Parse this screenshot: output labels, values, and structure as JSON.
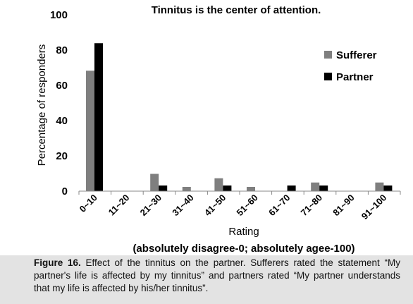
{
  "chart_data": {
    "type": "bar",
    "title": "Tinnitus is the center of attention.",
    "xlabel": "Rating",
    "xlabel_note": "(absolutely disagree-0; absolutely agee-100)",
    "ylabel": "Percentage of responders",
    "ylim": [
      0,
      100
    ],
    "yticks": [
      "0",
      "20",
      "40",
      "60",
      "80",
      "100"
    ],
    "grid": false,
    "legend_position": "right",
    "categories": [
      "0~10",
      "11~20",
      "21~30",
      "31~40",
      "41~50",
      "51~60",
      "61~70",
      "71~80",
      "81~90",
      "91~100"
    ],
    "series": [
      {
        "name": "Sufferer",
        "color": "#7f7f7f",
        "values": [
          68.3,
          0,
          9.8,
          2.4,
          7.3,
          2.4,
          0,
          4.9,
          0,
          4.9
        ]
      },
      {
        "name": "Partner",
        "color": "#000000",
        "values": [
          83.9,
          0,
          3.2,
          0,
          3.2,
          0,
          3.2,
          3.2,
          0,
          3.2
        ]
      }
    ]
  },
  "caption": {
    "label": "Figure 16.",
    "text": "Effect of the tinnitus on the partner. Sufferers rated the statement “My partner's life is affected by my tinnitus” and partners rated “My partner understands that my life is affected by his/her tinnitus”."
  }
}
